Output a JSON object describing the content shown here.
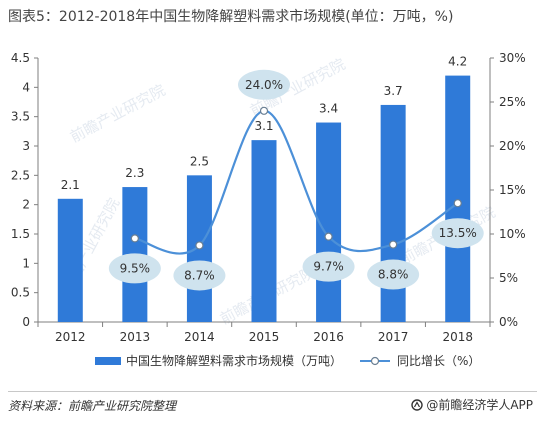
{
  "title": "图表5：2012-2018年中国生物降解塑料需求市场规模(单位：万吨，%)",
  "source": "资料来源：前瞻产业研究院整理",
  "brand": "@前瞻经济学人APP",
  "watermark": "前瞻产业研究院",
  "colors": {
    "bar": "#2f7ad8",
    "line": "#4c90d8",
    "marker_fill": "#ffffff",
    "bubble": "#cfe3ee",
    "axis": "#7f7f7f",
    "text": "#333333"
  },
  "chart_data": {
    "type": "bar+line",
    "categories": [
      "2012",
      "2013",
      "2014",
      "2015",
      "2016",
      "2017",
      "2018"
    ],
    "series": [
      {
        "name": "中国生物降解塑料需求市场规模（万吨）",
        "type": "bar",
        "axis": "left",
        "values": [
          2.1,
          2.3,
          2.5,
          3.1,
          3.4,
          3.7,
          4.2
        ],
        "labels": [
          "2.1",
          "2.3",
          "2.5",
          "3.1",
          "3.4",
          "3.7",
          "4.2"
        ]
      },
      {
        "name": "同比增长（%）",
        "type": "line",
        "axis": "right",
        "values": [
          null,
          9.5,
          8.7,
          24.0,
          9.7,
          8.8,
          13.5
        ],
        "labels": [
          "",
          "9.5%",
          "8.7%",
          "24.0%",
          "9.7%",
          "8.8%",
          "13.5%"
        ]
      }
    ],
    "y_left": {
      "min": 0,
      "max": 4.5,
      "ticks": [
        "0",
        "0.5",
        "1",
        "1.5",
        "2",
        "2.5",
        "3",
        "3.5",
        "4",
        "4.5"
      ]
    },
    "y_right": {
      "min": 0,
      "max": 30,
      "ticks": [
        "0%",
        "5%",
        "10%",
        "15%",
        "20%",
        "25%",
        "30%"
      ]
    },
    "grid": false,
    "legend_position": "bottom"
  }
}
